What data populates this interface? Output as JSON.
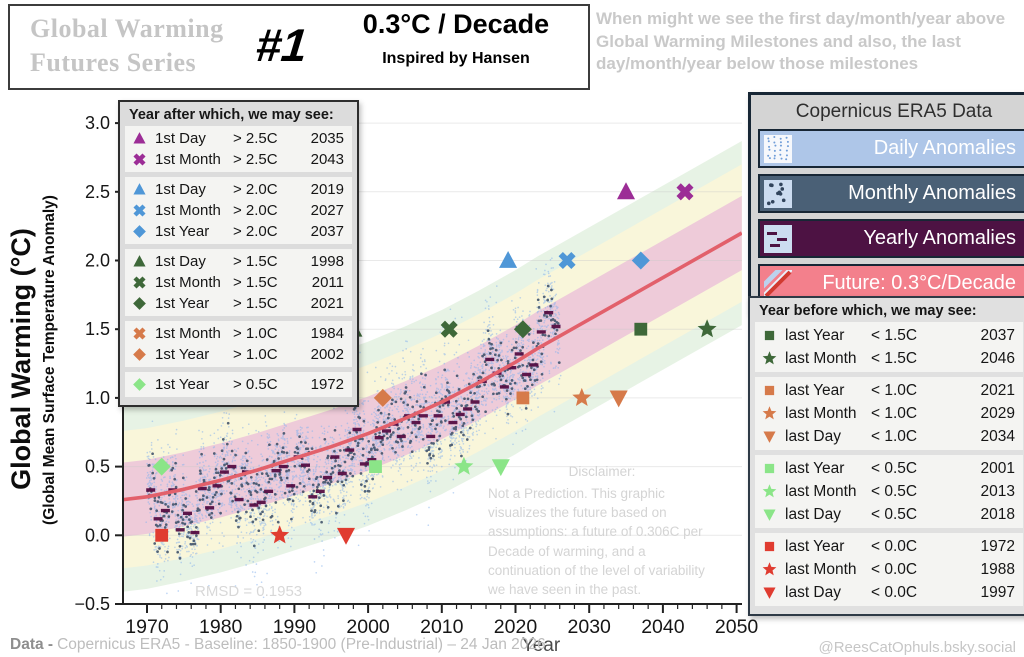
{
  "header": {
    "series_title": "Global Warming Futures Series",
    "number": "#1",
    "rate_title": "0.3°C / Decade",
    "subtitle": "Inspired by Hansen"
  },
  "tagline": "When might we see the first day/month/year above Global Warming Milestones and also, the last day/month/year below those milestones",
  "colors": {
    "purple": "#9c2d96",
    "blue": "#4f97d7",
    "dark_green": "#3e6839",
    "orange": "#d67a4a",
    "light_green": "#8be588",
    "red": "#e03c30",
    "daily_bar": "#aec6e8",
    "monthly_bar": "#4a6076",
    "yearly_bar": "#4d1243",
    "future_bar": "#f3808c",
    "daily_dot": "#8ab4ec",
    "monthly_dot": "#3d5068",
    "yearly_dash": "#571045",
    "trend": "#e2606b",
    "band_pink": "#ecc6d8",
    "band_yellow": "#fbf6d8",
    "band_green": "#e4f2e2"
  },
  "first_legend": {
    "title": "Year after which, we may see:"
  },
  "last_legend": {
    "title": "Year before which, we may see:"
  },
  "era5_panel": {
    "title": "Copernicus ERA5 Data",
    "items": [
      {
        "label": "Daily Anomalies",
        "swatch": "daily",
        "bar_color_key": "daily_bar"
      },
      {
        "label": "Monthly Anomalies",
        "swatch": "monthly",
        "bar_color_key": "monthly_bar"
      },
      {
        "label": "Yearly Anomalies",
        "swatch": "yearly",
        "bar_color_key": "yearly_bar"
      },
      {
        "label": "Future: 0.3°C/Decade",
        "swatch": "future",
        "bar_color_key": "future_bar"
      }
    ]
  },
  "chart_labels": {
    "ylabel_main": "Global Warming  (°C)",
    "ylabel_sub": "(Global Mean Surface Temperature Anomaly)",
    "xlabel": "Year",
    "rmsd": "RMSD = 0.1953",
    "disclaimer_title": "Disclaimer:",
    "disclaimer_body": "Not a Prediction. This graphic visualizes the future based on assumptions: a future of 0.306C per Decade of warming, and a continuation of the level of variability we have seen in the past."
  },
  "footer": {
    "data_label": "Data -",
    "data_text": "Copernicus ERA5 - Baseline: 1850-1900 (Pre-Industrial) – 24 Jan 2026",
    "credit": "@ReesCatOphuls.bsky.social"
  },
  "chart_data": {
    "type": "scatter",
    "title": "Global Warming Futures Series #1 — 0.3°C / Decade",
    "xlabel": "Year",
    "ylabel": "Global Warming (°C)",
    "ylabel_sub": "(Global Mean Surface Temperature Anomaly)",
    "x_range": [
      1966.75,
      2050.7
    ],
    "y_range": [
      -0.5,
      3.1
    ],
    "x_ticks": [
      1970,
      1980,
      1990,
      2000,
      2010,
      2020,
      2030,
      2040,
      2050
    ],
    "x_minor_tick_step": 2,
    "y_ticks": [
      -0.5,
      0.0,
      0.5,
      1.0,
      1.5,
      2.0,
      2.5,
      3.0
    ],
    "grid": "horizontal-faint",
    "legend_position": "panels-right-and-upper-left",
    "assumed_rate_c_per_decade": 0.306,
    "rmsd": 0.1953,
    "observed_span_years": [
      1970,
      2026
    ],
    "trend_points": [
      [
        1966.8,
        0.26
      ],
      [
        1970,
        0.28
      ],
      [
        1975,
        0.335
      ],
      [
        1980,
        0.4
      ],
      [
        1985,
        0.475
      ],
      [
        1990,
        0.56
      ],
      [
        1995,
        0.645
      ],
      [
        2000,
        0.74
      ],
      [
        2005,
        0.85
      ],
      [
        2010,
        0.97
      ],
      [
        2015,
        1.11
      ],
      [
        2020,
        1.26
      ],
      [
        2023,
        1.36
      ],
      [
        2026,
        1.45
      ],
      [
        2050.7,
        2.2
      ]
    ],
    "uncertainty_bands": [
      {
        "name": "outer",
        "halfwidth_c": 0.67,
        "color_key": "band_green"
      },
      {
        "name": "middle",
        "halfwidth_c": 0.5,
        "color_key": "band_yellow"
      },
      {
        "name": "inner",
        "halfwidth_c": 0.27,
        "color_key": "band_pink"
      }
    ],
    "yearly_anomalies": {
      "start_year": 1970,
      "values": [
        0.33,
        0.12,
        0.18,
        0.33,
        0.04,
        0.16,
        0.02,
        0.34,
        0.2,
        0.36,
        0.46,
        0.5,
        0.26,
        0.46,
        0.22,
        0.24,
        0.32,
        0.47,
        0.5,
        0.36,
        0.57,
        0.51,
        0.28,
        0.32,
        0.42,
        0.57,
        0.45,
        0.62,
        0.77,
        0.52,
        0.55,
        0.71,
        0.76,
        0.81,
        0.72,
        0.87,
        0.82,
        0.87,
        0.72,
        0.87,
        0.97,
        0.82,
        0.88,
        0.92,
        0.97,
        1.12,
        1.28,
        1.18,
        1.08,
        1.22,
        1.32,
        1.17,
        1.24,
        1.48,
        1.62,
        1.52
      ]
    },
    "noise_model": {
      "monthly_sd_c": 0.13,
      "daily_sd_c": 0.105,
      "spike_fraction": 0.16,
      "spike_factor": 2.4,
      "daily_dots_per_month": 7
    },
    "milestones_first": [
      {
        "marker": "triangle-up",
        "color": "purple",
        "label": "1st Day",
        "compare": "> 2.5C",
        "level": 2.5,
        "year": 2035,
        "group": 0
      },
      {
        "marker": "x",
        "color": "purple",
        "label": "1st Month",
        "compare": "> 2.5C",
        "level": 2.5,
        "year": 2043,
        "group": 0
      },
      {
        "marker": "triangle-up",
        "color": "blue",
        "label": "1st Day",
        "compare": "> 2.0C",
        "level": 2.0,
        "year": 2019,
        "group": 1
      },
      {
        "marker": "x",
        "color": "blue",
        "label": "1st Month",
        "compare": "> 2.0C",
        "level": 2.0,
        "year": 2027,
        "group": 1
      },
      {
        "marker": "diamond",
        "color": "blue",
        "label": "1st Year",
        "compare": "> 2.0C",
        "level": 2.0,
        "year": 2037,
        "group": 1
      },
      {
        "marker": "triangle-up",
        "color": "dark_green",
        "label": "1st Day",
        "compare": "> 1.5C",
        "level": 1.5,
        "year": 1998,
        "group": 2
      },
      {
        "marker": "x",
        "color": "dark_green",
        "label": "1st Month",
        "compare": "> 1.5C",
        "level": 1.5,
        "year": 2011,
        "group": 2
      },
      {
        "marker": "diamond",
        "color": "dark_green",
        "label": "1st Year",
        "compare": "> 1.5C",
        "level": 1.5,
        "year": 2021,
        "group": 2
      },
      {
        "marker": "x",
        "color": "orange",
        "label": "1st Month",
        "compare": "> 1.0C",
        "level": 1.0,
        "year": 1984,
        "group": 3
      },
      {
        "marker": "diamond",
        "color": "orange",
        "label": "1st Year",
        "compare": "> 1.0C",
        "level": 1.0,
        "year": 2002,
        "group": 3
      },
      {
        "marker": "diamond",
        "color": "light_green",
        "label": "1st Year",
        "compare": "> 0.5C",
        "level": 0.5,
        "year": 1972,
        "group": 4
      }
    ],
    "milestones_last": [
      {
        "marker": "square",
        "color": "dark_green",
        "label": "last Year",
        "compare": "< 1.5C",
        "level": 1.5,
        "year": 2037,
        "group": 0
      },
      {
        "marker": "star",
        "color": "dark_green",
        "label": "last Month",
        "compare": "< 1.5C",
        "level": 1.5,
        "year": 2046,
        "group": 0
      },
      {
        "marker": "square",
        "color": "orange",
        "label": "last Year",
        "compare": "< 1.0C",
        "level": 1.0,
        "year": 2021,
        "group": 1
      },
      {
        "marker": "star",
        "color": "orange",
        "label": "last Month",
        "compare": "< 1.0C",
        "level": 1.0,
        "year": 2029,
        "group": 1
      },
      {
        "marker": "triangle-down",
        "color": "orange",
        "label": "last Day",
        "compare": "< 1.0C",
        "level": 1.0,
        "year": 2034,
        "group": 1
      },
      {
        "marker": "square",
        "color": "light_green",
        "label": "last Year",
        "compare": "< 0.5C",
        "level": 0.5,
        "year": 2001,
        "group": 2
      },
      {
        "marker": "star",
        "color": "light_green",
        "label": "last Month",
        "compare": "< 0.5C",
        "level": 0.5,
        "year": 2013,
        "group": 2
      },
      {
        "marker": "triangle-down",
        "color": "light_green",
        "label": "last Day",
        "compare": "< 0.5C",
        "level": 0.5,
        "year": 2018,
        "group": 2
      },
      {
        "marker": "square",
        "color": "red",
        "label": "last Year",
        "compare": "< 0.0C",
        "level": 0.0,
        "year": 1972,
        "group": 3
      },
      {
        "marker": "star",
        "color": "red",
        "label": "last Month",
        "compare": "< 0.0C",
        "level": 0.0,
        "year": 1988,
        "group": 3
      },
      {
        "marker": "triangle-down",
        "color": "red",
        "label": "last Day",
        "compare": "< 0.0C",
        "level": 0.0,
        "year": 1997,
        "group": 3
      }
    ]
  }
}
